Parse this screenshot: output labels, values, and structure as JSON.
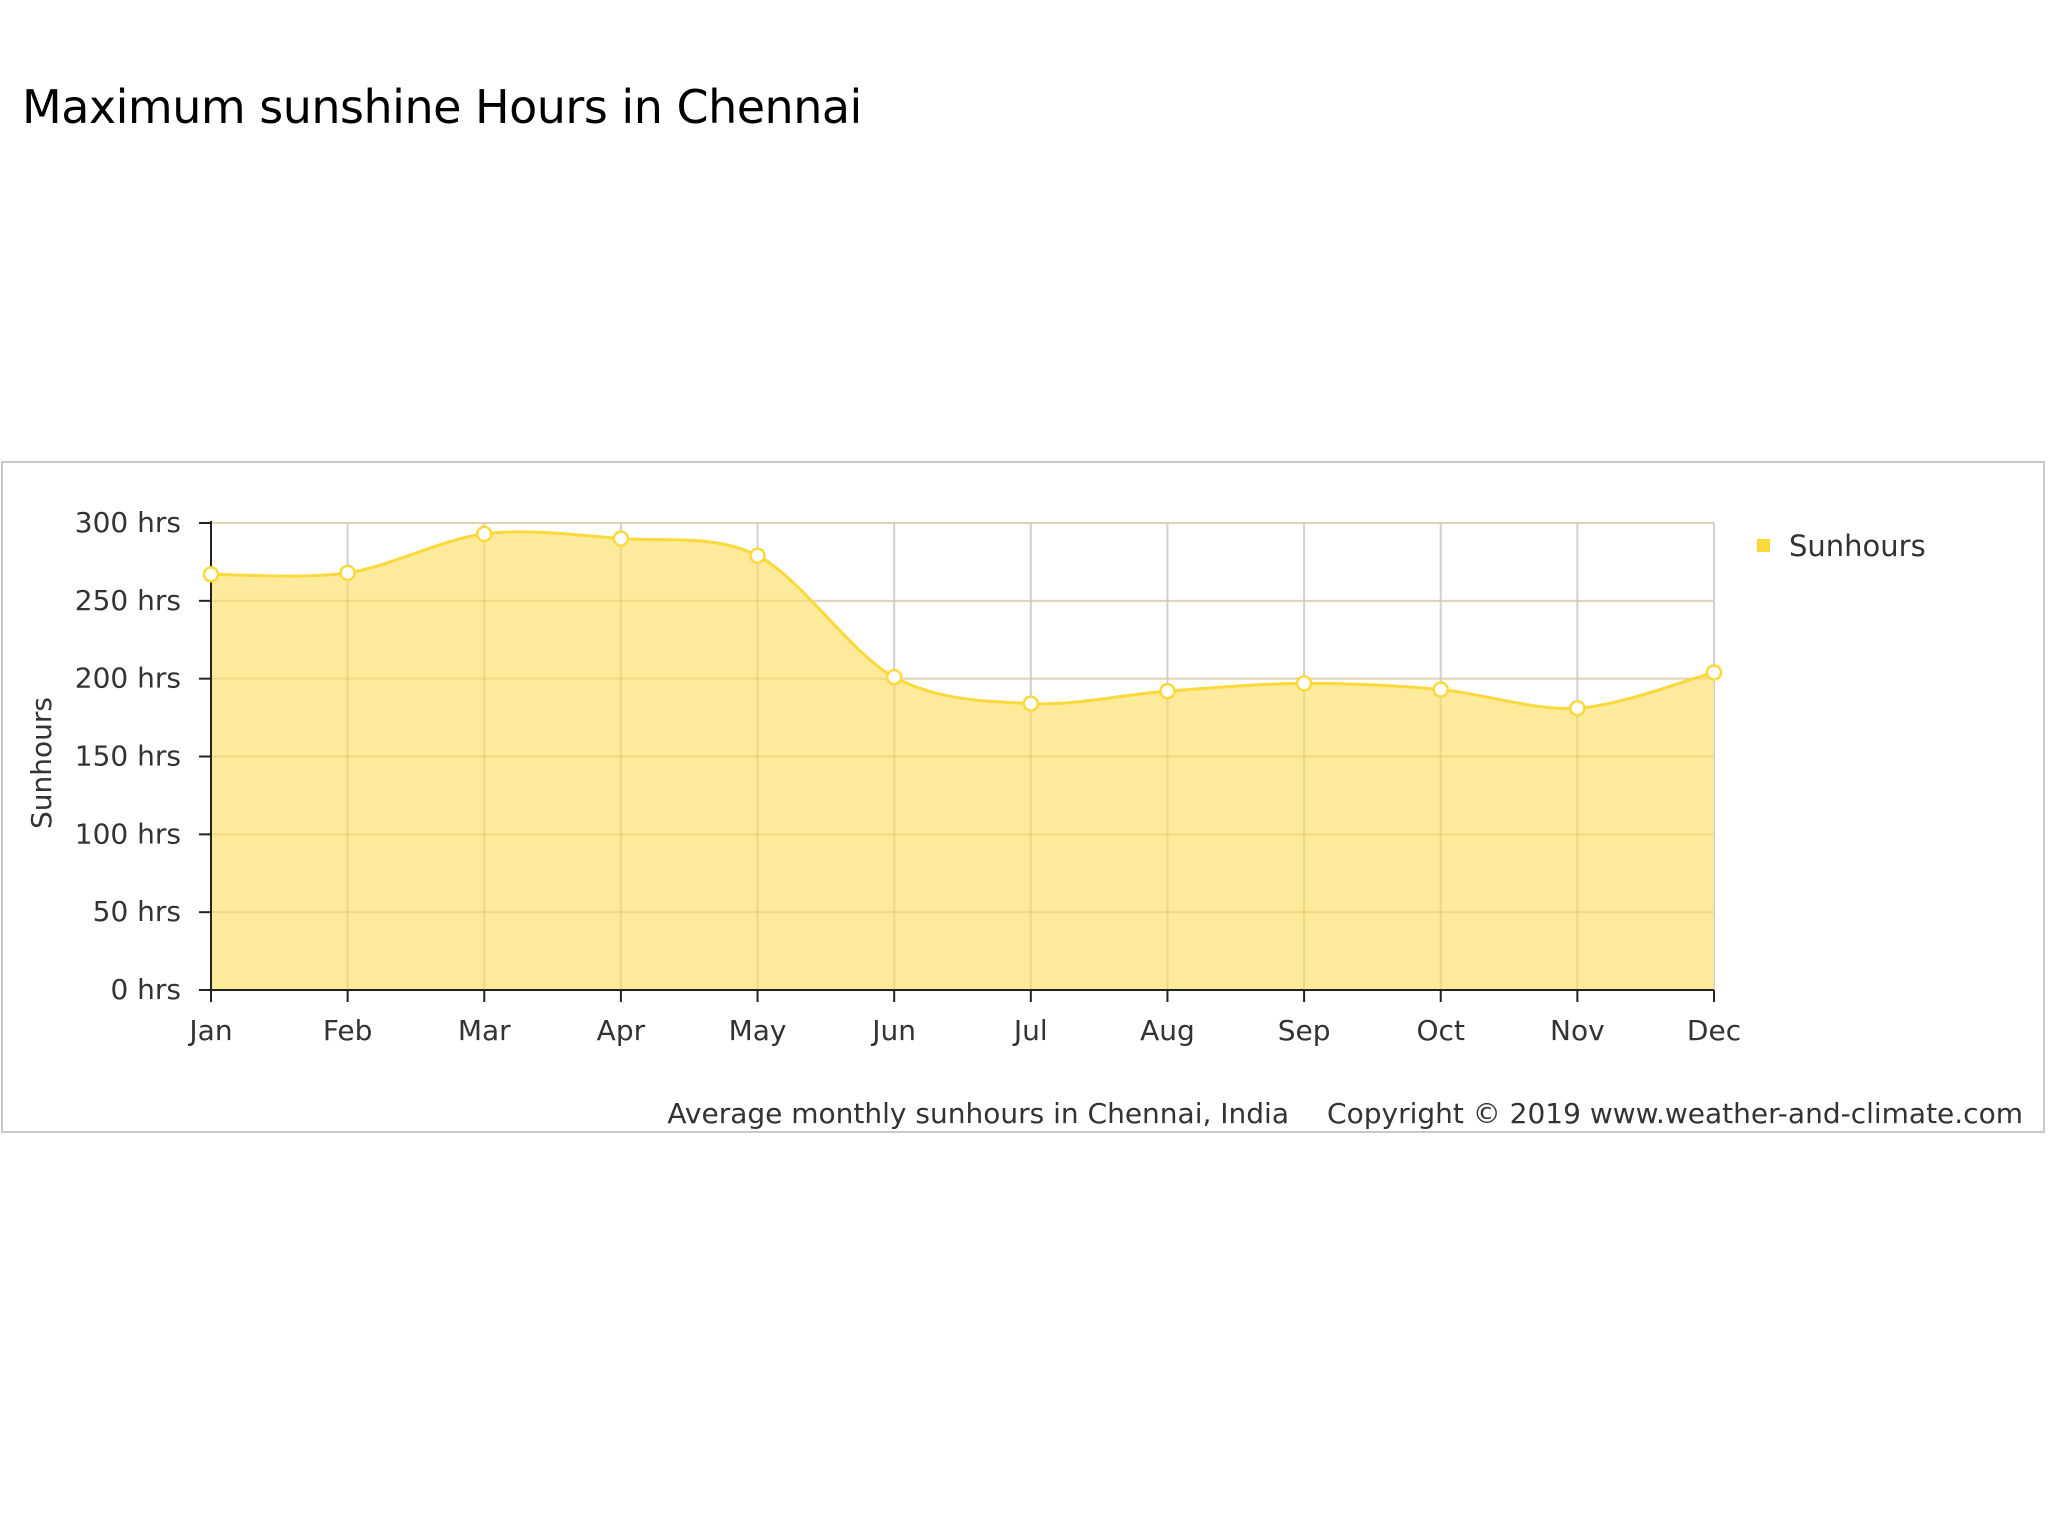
{
  "page": {
    "title": "Maximum sunshine Hours in Chennai"
  },
  "chart_data": {
    "type": "area",
    "categories": [
      "Jan",
      "Feb",
      "Mar",
      "Apr",
      "May",
      "Jun",
      "Jul",
      "Aug",
      "Sep",
      "Oct",
      "Nov",
      "Dec"
    ],
    "series": [
      {
        "name": "Sunhours",
        "values": [
          267,
          268,
          293,
          290,
          279,
          201,
          184,
          192,
          197,
          193,
          181,
          204
        ],
        "color": "#fcd93a",
        "fill": "#fde68a"
      }
    ],
    "ylabel": "Sunhours",
    "xlabel": "",
    "ylim": [
      0,
      300
    ],
    "yticks": [
      0,
      50,
      100,
      150,
      200,
      250,
      300
    ],
    "ytick_labels": [
      "0 hrs",
      "50 hrs",
      "100 hrs",
      "150 hrs",
      "200 hrs",
      "250 hrs",
      "300 hrs"
    ],
    "grid": true,
    "legend": "top-right",
    "caption": "Average monthly sunhours in Chennai, India",
    "copyright": "Copyright © 2019 www.weather-and-climate.com"
  }
}
